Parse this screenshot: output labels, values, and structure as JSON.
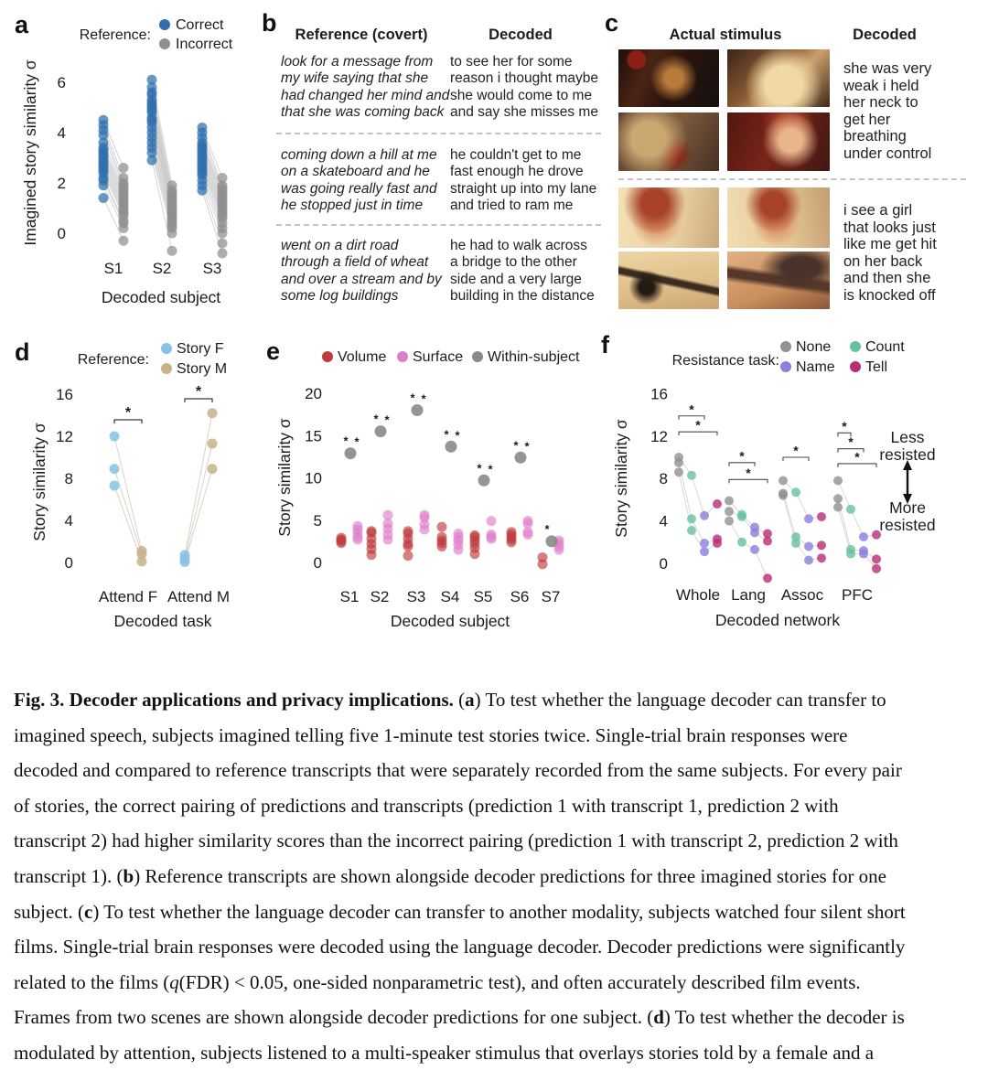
{
  "figure": {
    "panel_b": {
      "label": "b",
      "col1_header": "Reference (covert)",
      "col2_header": "Decoded",
      "rows": [
        {
          "reference": [
            "look for a message from",
            "my wife saying that she",
            "had changed her mind and",
            "that she was coming back"
          ],
          "decoded": [
            "to see her for some",
            "reason i thought maybe",
            "she would come to me",
            "and say she misses me"
          ]
        },
        {
          "reference": [
            "coming down a hill at me",
            "on a skateboard and he",
            "was going really fast and",
            "he stopped just in time"
          ],
          "decoded": [
            "he couldn't get to me",
            "fast enough he drove",
            "straight up into my lane",
            "and tried to ram me"
          ]
        },
        {
          "reference": [
            "went on a dirt road",
            "through a field of wheat",
            "and over a stream and by",
            "some log buildings"
          ],
          "decoded": [
            "he had to walk across",
            "a bridge to the other",
            "side and a very large",
            "building in the distance"
          ]
        }
      ]
    },
    "panel_c": {
      "label": "c",
      "col1_header": "Actual stimulus",
      "col2_header": "Decoded",
      "scenes": [
        {
          "decoded": [
            "she was very",
            "weak i held",
            "her neck to",
            "get her",
            "breathing",
            "under control"
          ]
        },
        {
          "decoded": [
            "i see a girl",
            "that looks just",
            "like me get hit",
            "on her back",
            "and then she",
            "is knocked off"
          ]
        }
      ]
    },
    "caption_lines": [
      [
        {
          "t": "Fig. 3. Decoder applications and privacy implications.",
          "b": true
        },
        {
          "t": " ("
        },
        {
          "t": "a",
          "b": true
        },
        {
          "t": ") To test whether the language decoder can transfer to"
        }
      ],
      [
        {
          "t": "imagined speech, subjects imagined telling five 1-minute test stories twice. Single-trial brain responses were"
        }
      ],
      [
        {
          "t": "decoded and compared to reference transcripts that were separately recorded from the same subjects. For every pair"
        }
      ],
      [
        {
          "t": "of stories, the correct pairing of predictions and transcripts (prediction 1 with transcript 1, prediction 2 with"
        }
      ],
      [
        {
          "t": "transcript 2) had higher similarity scores than the incorrect pairing (prediction 1 with transcript 2, prediction 2 with"
        }
      ],
      [
        {
          "t": "transcript 1). ("
        },
        {
          "t": "b",
          "b": true
        },
        {
          "t": ") Reference transcripts are shown alongside decoder predictions for three imagined stories for one"
        }
      ],
      [
        {
          "t": "subject. ("
        },
        {
          "t": "c",
          "b": true
        },
        {
          "t": ") To test whether the language decoder can transfer to another modality, subjects watched four silent short"
        }
      ],
      [
        {
          "t": "films. Single-trial brain responses were decoded using the language decoder. Decoder predictions were significantly"
        }
      ],
      [
        {
          "t": "related to the films ("
        },
        {
          "t": "q",
          "i": true
        },
        {
          "t": "(FDR) < 0.05, one-sided nonparametric test), and often accurately described film events."
        }
      ],
      [
        {
          "t": "Frames from two scenes are shown alongside decoder predictions for one subject. ("
        },
        {
          "t": "d",
          "b": true
        },
        {
          "t": ") To test whether the decoder is"
        }
      ],
      [
        {
          "t": "modulated by attention, subjects listened to a multi-speaker stimulus that overlays stories told by a female and a"
        }
      ]
    ]
  },
  "chart_data": [
    {
      "panel_label": "a",
      "type": "scatter",
      "ylabel": "Imagined story similarity σ",
      "xlabel": "Decoded subject",
      "yticks": [
        0,
        2,
        4,
        6
      ],
      "categories": [
        "S1",
        "S2",
        "S3"
      ],
      "legend_title": "Reference:",
      "series_labels": [
        "Correct",
        "Incorrect"
      ],
      "colors": {
        "correct": "#2f6fad",
        "incorrect": "#8f8f8f",
        "connector": "#c9c9c9"
      },
      "pairs_correct_incorrect": [
        [
          [
            4.5,
            2.6
          ],
          [
            4.3,
            2.2
          ],
          [
            4.1,
            2.0
          ],
          [
            3.9,
            1.9
          ],
          [
            3.6,
            1.8
          ],
          [
            3.4,
            1.7
          ],
          [
            3.3,
            1.6
          ],
          [
            3.2,
            1.5
          ],
          [
            3.1,
            1.4
          ],
          [
            3.0,
            1.3
          ],
          [
            2.9,
            1.2
          ],
          [
            2.8,
            1.1
          ],
          [
            2.7,
            1.0
          ],
          [
            2.6,
            0.9
          ],
          [
            2.5,
            0.8
          ],
          [
            2.4,
            0.7
          ],
          [
            2.2,
            0.5
          ],
          [
            2.1,
            0.4
          ],
          [
            1.9,
            0.2
          ],
          [
            1.4,
            -0.3
          ]
        ],
        [
          [
            6.1,
            1.9
          ],
          [
            5.8,
            1.7
          ],
          [
            5.6,
            1.6
          ],
          [
            5.5,
            1.5
          ],
          [
            5.3,
            1.4
          ],
          [
            5.2,
            1.3
          ],
          [
            5.1,
            1.2
          ],
          [
            5.0,
            1.1
          ],
          [
            4.9,
            1.0
          ],
          [
            4.8,
            0.9
          ],
          [
            4.6,
            0.85
          ],
          [
            4.5,
            0.8
          ],
          [
            4.4,
            0.7
          ],
          [
            4.2,
            0.6
          ],
          [
            4.0,
            0.5
          ],
          [
            3.8,
            0.4
          ],
          [
            3.6,
            0.3
          ],
          [
            3.4,
            0.2
          ],
          [
            3.2,
            0.0
          ],
          [
            2.9,
            -0.7
          ]
        ],
        [
          [
            4.2,
            2.2
          ],
          [
            4.0,
            1.9
          ],
          [
            3.8,
            1.8
          ],
          [
            3.6,
            1.7
          ],
          [
            3.5,
            1.6
          ],
          [
            3.4,
            1.5
          ],
          [
            3.3,
            1.4
          ],
          [
            3.2,
            1.3
          ],
          [
            3.1,
            1.2
          ],
          [
            3.0,
            1.1
          ],
          [
            2.9,
            1.0
          ],
          [
            2.8,
            0.9
          ],
          [
            2.7,
            0.8
          ],
          [
            2.6,
            0.7
          ],
          [
            2.5,
            0.6
          ],
          [
            2.4,
            0.4
          ],
          [
            2.3,
            0.2
          ],
          [
            2.1,
            0.0
          ],
          [
            1.9,
            -0.4
          ],
          [
            1.7,
            -0.8
          ]
        ]
      ]
    },
    {
      "panel_label": "d",
      "type": "scatter",
      "ylabel": "Story similarity σ",
      "xlabel": "Decoded task",
      "yticks": [
        0,
        4,
        8,
        12,
        16
      ],
      "categories": [
        "Attend F",
        "Attend M"
      ],
      "legend_title": "Reference:",
      "series_labels": [
        "Story F",
        "Story M"
      ],
      "colors": {
        "story_f": "#85c2e3",
        "story_m": "#c8b28d",
        "connector": "#d9d2c5"
      },
      "pairs_storyF_storyM": [
        [
          [
            12.0,
            1.1
          ],
          [
            8.9,
            0.8
          ],
          [
            7.3,
            0.1
          ]
        ],
        [
          [
            0.7,
            14.2
          ],
          [
            0.35,
            11.3
          ],
          [
            0.05,
            8.9
          ]
        ]
      ],
      "significance": [
        {
          "category": "Attend F",
          "marker": "*"
        },
        {
          "category": "Attend M",
          "marker": "*"
        }
      ]
    },
    {
      "panel_label": "e",
      "type": "scatter",
      "ylabel": "Story similarity σ",
      "xlabel": "Decoded subject",
      "yticks": [
        0,
        5,
        10,
        15,
        20
      ],
      "categories": [
        "S1",
        "S2",
        "S3",
        "S4",
        "S5",
        "S6",
        "S7"
      ],
      "series_labels": [
        "Volume",
        "Surface",
        "Within-subject"
      ],
      "colors": {
        "volume": "#bf3b3c",
        "surface": "#de7fcb",
        "within_subject": "#898989",
        "star_red": "#a23939",
        "star_pink": "#d78ab8"
      },
      "volume": [
        [
          2.9,
          2.7,
          2.5,
          2.3
        ],
        [
          3.7,
          3.5,
          2.8,
          2.2,
          1.6,
          0.9
        ],
        [
          3.7,
          3.4,
          2.8,
          2.2,
          1.9,
          0.8
        ],
        [
          4.2,
          3.0,
          2.6,
          2.3,
          1.9
        ],
        [
          3.2,
          3.0,
          2.6,
          2.2,
          1.7,
          1.0
        ],
        [
          3.6,
          3.3,
          3.0,
          2.7,
          2.4
        ],
        [
          0.6,
          -0.2
        ]
      ],
      "surface": [
        [
          4.3,
          3.9,
          3.5,
          3.0,
          2.7
        ],
        [
          5.6,
          4.6,
          4.0,
          3.3,
          2.7
        ],
        [
          5.6,
          5.3,
          4.5,
          3.9
        ],
        [
          3.4,
          3.0,
          2.6,
          2.1,
          1.5
        ],
        [
          4.9,
          3.3,
          3.0,
          2.8
        ],
        [
          4.9,
          4.6,
          3.6,
          3.3
        ],
        [
          2.6,
          2.3,
          1.9,
          1.5
        ]
      ],
      "within_subject": [
        12.9,
        15.5,
        18.0,
        13.7,
        9.7,
        12.4,
        2.5
      ],
      "significance": [
        [
          "volume",
          "surface"
        ],
        [
          "volume",
          "surface"
        ],
        [
          "volume",
          "surface"
        ],
        [
          "volume",
          "surface"
        ],
        [
          "volume",
          "surface"
        ],
        [
          "volume",
          "surface"
        ],
        [
          "volume"
        ]
      ]
    },
    {
      "panel_label": "f",
      "type": "scatter",
      "ylabel": "Story similarity σ",
      "xlabel": "Decoded network",
      "yticks": [
        0,
        4,
        8,
        12,
        16
      ],
      "categories": [
        "Whole",
        "Lang",
        "Assoc",
        "PFC"
      ],
      "legend_title": "Resistance task:",
      "series_labels": [
        "None",
        "Name",
        "Count",
        "Tell"
      ],
      "colors": {
        "none": "#919191",
        "count": "#66c2a0",
        "name": "#8b80dd",
        "tell": "#b92d74",
        "connector": "#d8d8d8"
      },
      "none": [
        [
          10.0,
          9.5,
          8.6
        ],
        [
          5.9,
          4.9,
          4.0
        ],
        [
          7.8,
          6.6,
          6.4
        ],
        [
          7.8,
          6.1,
          5.3
        ]
      ],
      "count": [
        [
          8.3,
          4.2,
          3.1
        ],
        [
          4.6,
          4.4,
          2.0
        ],
        [
          6.7,
          2.5,
          1.9
        ],
        [
          5.1,
          1.3,
          0.9
        ]
      ],
      "name": [
        [
          4.5,
          1.9,
          1.1
        ],
        [
          3.4,
          2.9,
          1.3
        ],
        [
          4.2,
          1.6,
          0.3
        ],
        [
          2.5,
          1.2,
          0.9
        ]
      ],
      "tell": [
        [
          5.6,
          2.3,
          1.9
        ],
        [
          2.8,
          2.1,
          -1.4
        ],
        [
          4.4,
          1.7,
          0.5
        ],
        [
          2.7,
          0.4,
          -0.5
        ]
      ],
      "brackets": [
        {
          "category": "Whole",
          "target": "name",
          "height": 13.9,
          "marker": "*"
        },
        {
          "category": "Whole",
          "target": "tell",
          "height": 12.4,
          "marker": "*"
        },
        {
          "category": "Lang",
          "target": "name",
          "height": 9.5,
          "marker": "*"
        },
        {
          "category": "Lang",
          "target": "tell",
          "height": 7.9,
          "marker": "*"
        },
        {
          "category": "Assoc",
          "target": "name",
          "height": 10.0,
          "marker": "*"
        },
        {
          "category": "PFC",
          "target": "count",
          "height": 12.3,
          "marker": "*"
        },
        {
          "category": "PFC",
          "target": "name",
          "height": 10.8,
          "marker": "*"
        },
        {
          "category": "PFC",
          "target": "tell",
          "height": 9.4,
          "marker": "*"
        }
      ],
      "annotations": {
        "less": [
          "Less",
          "resisted"
        ],
        "more": [
          "More",
          "resisted"
        ]
      }
    }
  ]
}
